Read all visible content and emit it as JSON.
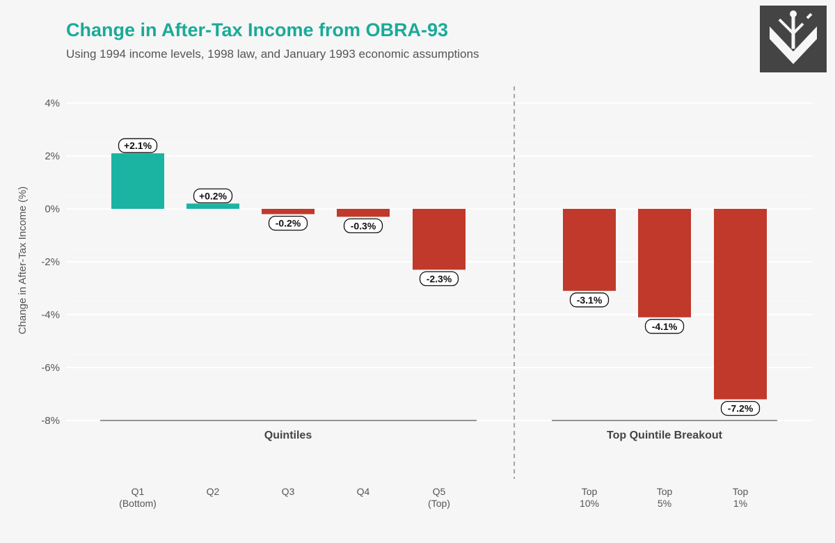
{
  "chart_data": {
    "type": "bar",
    "title": "Change in After-Tax Income from OBRA-93",
    "subtitle": "Using 1994 income levels, 1998 law, and January 1993 economic assumptions",
    "ylabel": "Change in After-Tax Income (%)",
    "xlabel": "",
    "ylim": [
      -8,
      4
    ],
    "yticks": [
      4,
      2,
      0,
      -2,
      -4,
      -6,
      -8
    ],
    "ytick_labels": [
      "4%",
      "2%",
      "0%",
      "-2%",
      "-4%",
      "-6%",
      "-8%"
    ],
    "grid": true,
    "legend": "none",
    "colors": {
      "positive": "#1bb3a2",
      "negative": "#c0392b"
    },
    "groups": [
      {
        "label": "Quintiles",
        "categories": [
          {
            "line1": "Q1",
            "line2": "(Bottom)",
            "value": 2.1,
            "data_label": "+2.1%"
          },
          {
            "line1": "Q2",
            "line2": "",
            "value": 0.2,
            "data_label": "+0.2%"
          },
          {
            "line1": "Q3",
            "line2": "",
            "value": -0.2,
            "data_label": "-0.2%"
          },
          {
            "line1": "Q4",
            "line2": "",
            "value": -0.3,
            "data_label": "-0.3%"
          },
          {
            "line1": "Q5",
            "line2": "(Top)",
            "value": -2.3,
            "data_label": "-2.3%"
          }
        ]
      },
      {
        "label": "Top Quintile Breakout",
        "categories": [
          {
            "line1": "Top",
            "line2": "10%",
            "value": -3.1,
            "data_label": "-3.1%"
          },
          {
            "line1": "Top",
            "line2": "5%",
            "value": -4.1,
            "data_label": "-4.1%"
          },
          {
            "line1": "Top",
            "line2": "1%",
            "value": -7.2,
            "data_label": "-7.2%"
          }
        ]
      }
    ]
  },
  "logo": {
    "icon": "tree-circuit-icon"
  }
}
